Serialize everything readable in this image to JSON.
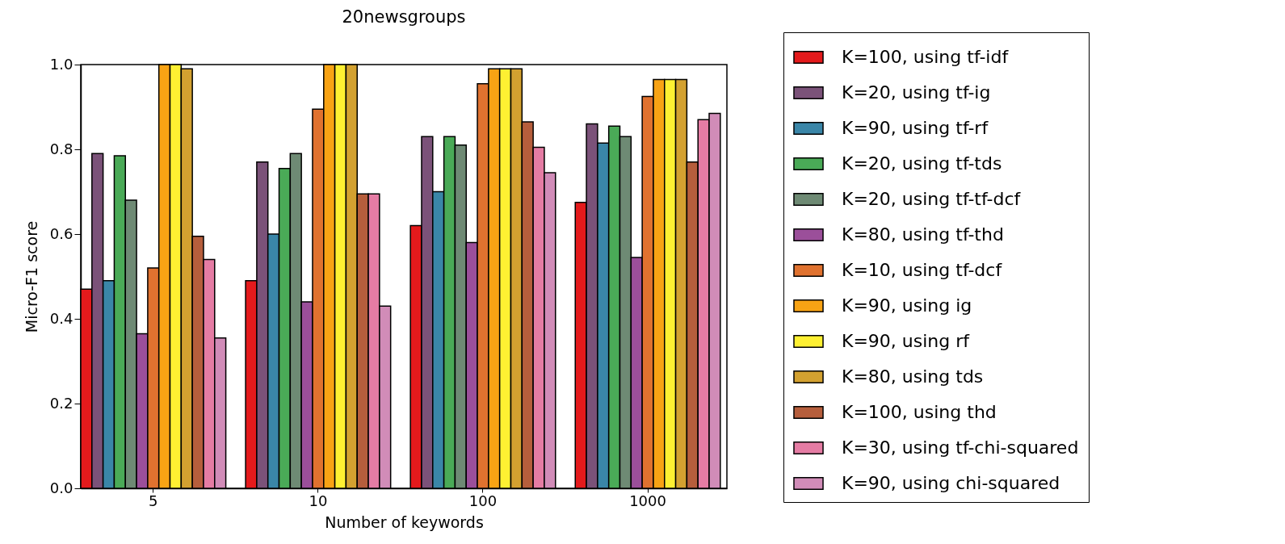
{
  "chart_data": {
    "type": "bar",
    "title": "20newsgroups",
    "xlabel": "Number of keywords",
    "ylabel": "Micro-F1 score",
    "categories": [
      "5",
      "10",
      "100",
      "1000"
    ],
    "ylim": [
      0,
      1
    ],
    "yticks": [
      {
        "value": 0,
        "label": "0.0"
      },
      {
        "value": 0.2,
        "label": "0.2"
      },
      {
        "value": 0.4,
        "label": "0.4"
      },
      {
        "value": 0.6,
        "label": "0.6"
      },
      {
        "value": 0.8,
        "label": "0.8"
      },
      {
        "value": 1,
        "label": "1.0"
      }
    ],
    "grid": false,
    "legend": "right",
    "series": [
      {
        "name": "K=100, using tf-idf",
        "color": "#e41a1c",
        "values": [
          0.47,
          0.49,
          0.62,
          0.675
        ]
      },
      {
        "name": "K=20, using tf-ig",
        "color": "#7b5279",
        "values": [
          0.79,
          0.77,
          0.83,
          0.86
        ]
      },
      {
        "name": "K=90, using tf-rf",
        "color": "#3a86a8",
        "values": [
          0.49,
          0.6,
          0.7,
          0.815
        ]
      },
      {
        "name": "K=20, using tf-tds",
        "color": "#4aaa57",
        "values": [
          0.785,
          0.755,
          0.83,
          0.855
        ]
      },
      {
        "name": "K=20, using tf-tf-dcf",
        "color": "#6e8a74",
        "values": [
          0.68,
          0.79,
          0.81,
          0.83
        ]
      },
      {
        "name": "K=80, using tf-thd",
        "color": "#9b4f9a",
        "values": [
          0.365,
          0.44,
          0.58,
          0.545
        ]
      },
      {
        "name": "K=10, using tf-dcf",
        "color": "#e0722f",
        "values": [
          0.52,
          0.895,
          0.955,
          0.925
        ]
      },
      {
        "name": "K=90, using ig",
        "color": "#f8a314",
        "values": [
          1.0,
          1.0,
          0.99,
          0.965
        ]
      },
      {
        "name": "K=90, using rf",
        "color": "#fef032",
        "values": [
          1.0,
          1.0,
          0.99,
          0.965
        ]
      },
      {
        "name": "K=80, using tds",
        "color": "#d3a130",
        "values": [
          0.99,
          1.0,
          0.99,
          0.965
        ]
      },
      {
        "name": "K=100, using thd",
        "color": "#b65e3c",
        "values": [
          0.595,
          0.695,
          0.865,
          0.77
        ]
      },
      {
        "name": "K=30, using tf-chi-squared",
        "color": "#e57ca4",
        "values": [
          0.54,
          0.695,
          0.805,
          0.87
        ]
      },
      {
        "name": "K=90, using chi-squared",
        "color": "#d18cb8",
        "values": [
          0.355,
          0.43,
          0.745,
          0.885
        ]
      }
    ]
  }
}
